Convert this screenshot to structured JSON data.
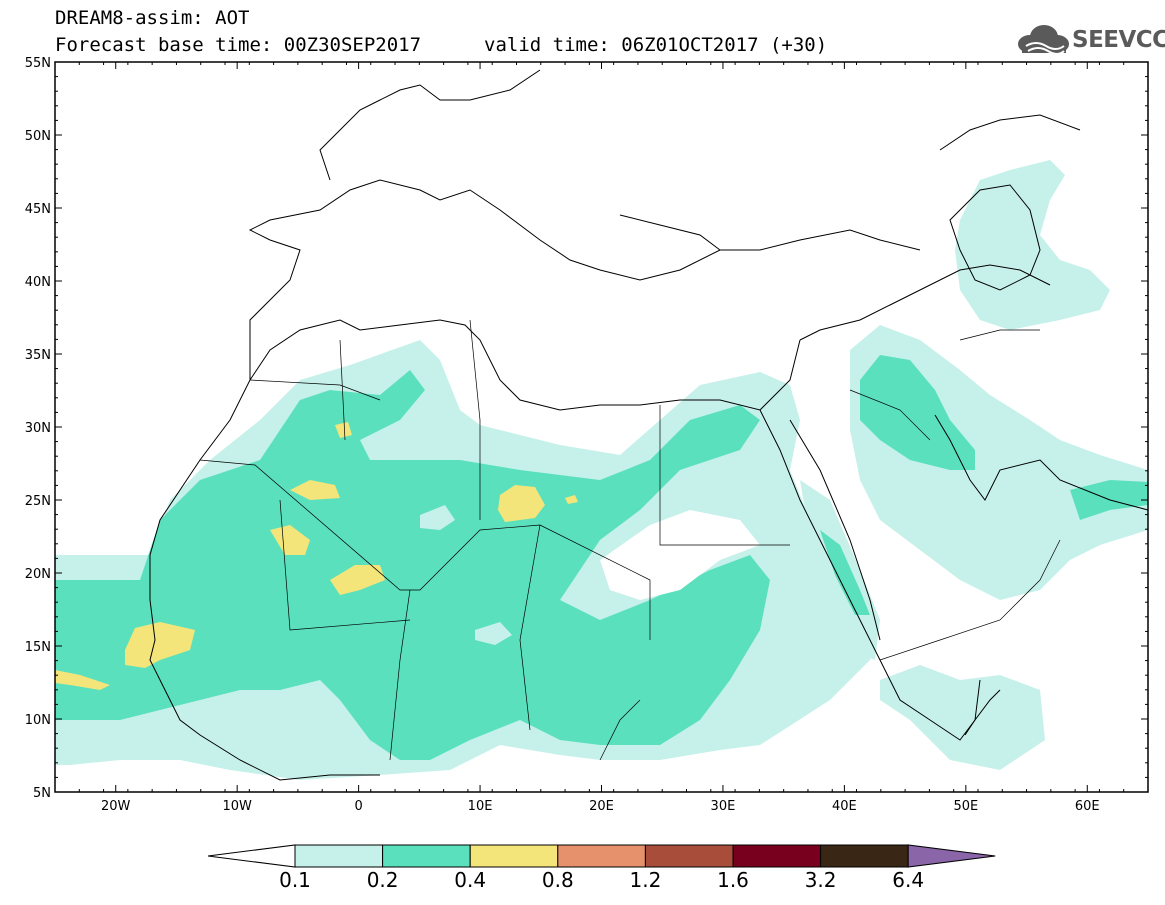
{
  "header": {
    "title": "DREAM8-assim: AOT",
    "base_time": "Forecast base time: 00Z30SEP2017",
    "valid_time": "valid time: 06Z01OCT2017 (+30)"
  },
  "logo": {
    "text": "SEEVCCC",
    "icon": "cloud-icon"
  },
  "map": {
    "lat_labels": [
      "55N",
      "50N",
      "45N",
      "40N",
      "35N",
      "30N",
      "25N",
      "20N",
      "15N",
      "10N",
      "5N"
    ],
    "lon_labels": [
      "20W",
      "10W",
      "0",
      "10E",
      "20E",
      "30E",
      "40E",
      "50E",
      "60E"
    ],
    "lat_range": [
      5,
      55
    ],
    "lon_range": [
      -25,
      65
    ]
  },
  "legend": {
    "levels": [
      "0.1",
      "0.2",
      "0.4",
      "0.8",
      "1.2",
      "1.6",
      "3.2",
      "6.4"
    ],
    "colors": [
      "#ffffff",
      "#c6f1ea",
      "#5ae0bd",
      "#f4e57a",
      "#e7916c",
      "#a84d3a",
      "#78001e",
      "#3a2614",
      "#8a65a8"
    ]
  }
}
